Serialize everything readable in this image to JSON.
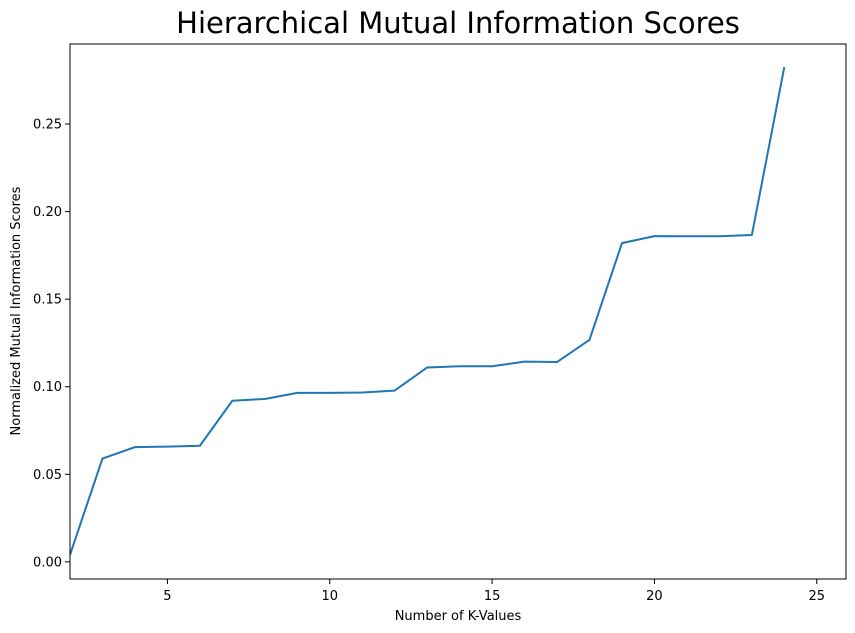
{
  "chart_data": {
    "type": "line",
    "title": "Hierarchical Mutual Information Scores",
    "xlabel": "Number of K-Values",
    "ylabel": "Normalized Mutual Information Scores",
    "xlim": [
      2,
      25.9
    ],
    "ylim": [
      -0.0098,
      0.2957
    ],
    "xticks": [
      5,
      10,
      15,
      20,
      25
    ],
    "yticks": [
      0.0,
      0.05,
      0.1,
      0.15,
      0.2,
      0.25
    ],
    "ytick_labels": [
      "0.00",
      "0.05",
      "0.10",
      "0.15",
      "0.20",
      "0.25"
    ],
    "grid": false,
    "legend": "none",
    "series": [
      {
        "color": "#1f77b4",
        "x": [
          2,
          3,
          4,
          5,
          6,
          7,
          8,
          9,
          10,
          11,
          12,
          13,
          14,
          15,
          16,
          17,
          18,
          19,
          20,
          21,
          22,
          23,
          24
        ],
        "y": [
          0.004,
          0.059,
          0.0655,
          0.0658,
          0.0663,
          0.092,
          0.093,
          0.0965,
          0.0965,
          0.0967,
          0.0978,
          0.111,
          0.1117,
          0.1117,
          0.1143,
          0.1141,
          0.1268,
          0.182,
          0.186,
          0.1859,
          0.1859,
          0.1866,
          0.2825
        ]
      }
    ]
  }
}
